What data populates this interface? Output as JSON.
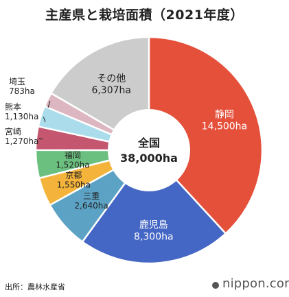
{
  "title": "主産県と栽培面積（2021年度）",
  "center": {
    "label": "全国",
    "value": "38,000ha"
  },
  "source": "出所：農林水産省",
  "brand": "nippon.com",
  "chart_data": {
    "type": "pie",
    "title": "主産県と栽培面積（2021年度）",
    "unit": "ha",
    "total": 38000,
    "slices": [
      {
        "name": "静岡",
        "value": 14500,
        "label": "14,500ha",
        "color": "#e5503b"
      },
      {
        "name": "鹿児島",
        "value": 8300,
        "label": "8,300ha",
        "color": "#4466c4"
      },
      {
        "name": "三重",
        "value": 2640,
        "label": "2,640ha",
        "color": "#5ba2c4"
      },
      {
        "name": "京都",
        "value": 1550,
        "label": "1,550ha",
        "color": "#f4b33a"
      },
      {
        "name": "福岡",
        "value": 1520,
        "label": "1,520ha",
        "color": "#6cc07f"
      },
      {
        "name": "宮崎",
        "value": 1270,
        "label": "1,270ha",
        "color": "#c45670"
      },
      {
        "name": "熊本",
        "value": 1130,
        "label": "1,130ha",
        "color": "#aadcec"
      },
      {
        "name": "埼玉",
        "value": 783,
        "label": "783ha",
        "color": "#dcb6c0"
      },
      {
        "name": "その他",
        "value": 6307,
        "label": "6,307ha",
        "color": "#cccccc"
      }
    ]
  }
}
